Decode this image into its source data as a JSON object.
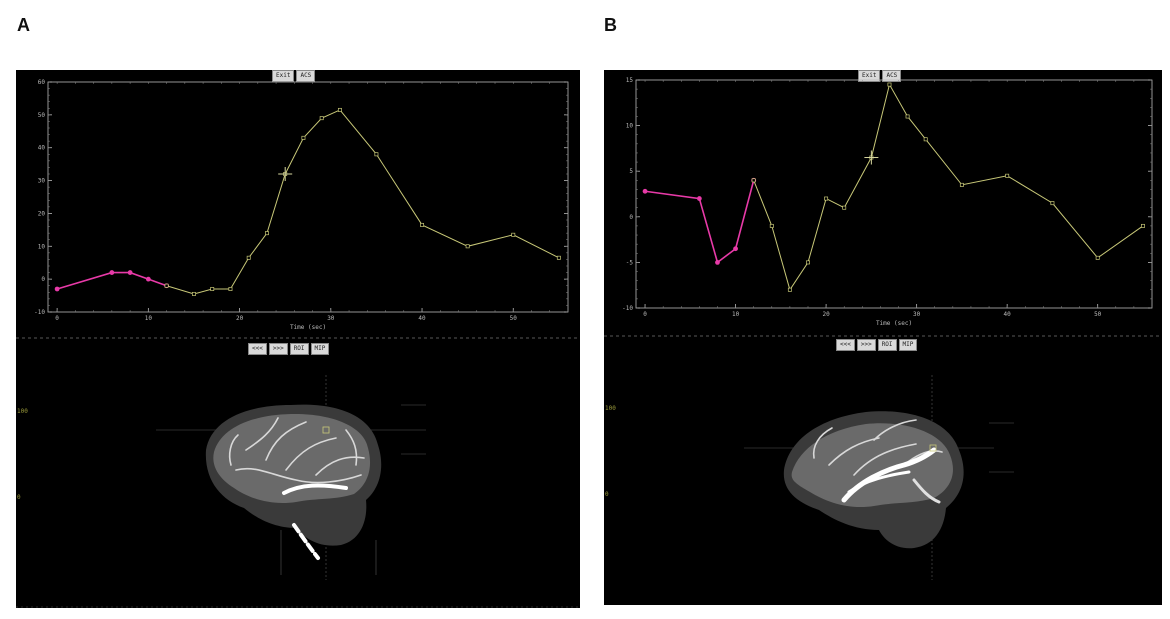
{
  "figure": {
    "panels": [
      {
        "letter": "A",
        "top_buttons": [
          "Exit",
          "ACS"
        ],
        "view_buttons": [
          "<<<",
          ">>>",
          "ROI",
          "MIP"
        ],
        "side_labels": [
          "100",
          "0"
        ],
        "chart": {
          "xlabel": "Time (sec)"
        }
      },
      {
        "letter": "B",
        "top_buttons": [
          "Exit",
          "ACS"
        ],
        "view_buttons": [
          "<<<",
          ">>>",
          "ROI",
          "MIP"
        ],
        "side_labels": [
          "100",
          "0"
        ],
        "chart": {
          "xlabel": "Time (sec)"
        }
      }
    ]
  },
  "chart_data": [
    {
      "type": "line",
      "xlabel": "Time (sec)",
      "ylabel": "",
      "xlim": [
        -1,
        56
      ],
      "ylim": [
        -10,
        60
      ],
      "xticks": [
        0,
        10,
        20,
        30,
        40,
        50
      ],
      "yticks": [
        -10,
        0,
        10,
        20,
        30,
        40,
        50,
        60
      ],
      "colors": {
        "baseline": "#e83aa8",
        "curve": "#c8c878",
        "cursor": "#d8d8a0"
      },
      "series": [
        {
          "role": "baseline",
          "x": [
            0,
            6,
            8,
            10,
            12
          ],
          "y": [
            -3,
            2,
            2,
            0,
            -2
          ]
        },
        {
          "role": "curve",
          "x": [
            12,
            15,
            17,
            19,
            21,
            23,
            25,
            27,
            29,
            31,
            35,
            40,
            45,
            50,
            55
          ],
          "y": [
            -2,
            -4.5,
            -3,
            -3,
            6.5,
            14,
            32,
            43,
            49,
            51.5,
            38,
            16.5,
            10,
            13.5,
            6.5
          ]
        }
      ],
      "cursor": {
        "x": 25,
        "y": 32
      }
    },
    {
      "type": "line",
      "xlabel": "Time (sec)",
      "ylabel": "",
      "xlim": [
        -1,
        56
      ],
      "ylim": [
        -10,
        15
      ],
      "xticks": [
        0,
        10,
        20,
        30,
        40,
        50
      ],
      "yticks": [
        -10,
        -5,
        0,
        5,
        10,
        15
      ],
      "colors": {
        "baseline": "#e83aa8",
        "curve": "#c8c878",
        "cursor": "#d8d8a0"
      },
      "series": [
        {
          "role": "baseline",
          "x": [
            0,
            6,
            8,
            10,
            12
          ],
          "y": [
            2.8,
            2,
            -5,
            -3.5,
            4
          ]
        },
        {
          "role": "curve",
          "x": [
            12,
            14,
            16,
            18,
            20,
            22,
            25,
            27,
            29,
            31,
            35,
            40,
            45,
            50,
            55
          ],
          "y": [
            4,
            -1,
            -8,
            -5,
            2,
            1,
            6.5,
            14.5,
            11,
            8.5,
            3.5,
            4.5,
            1.5,
            -4.5,
            -1
          ]
        }
      ],
      "cursor": {
        "x": 25,
        "y": 6.5
      }
    }
  ]
}
